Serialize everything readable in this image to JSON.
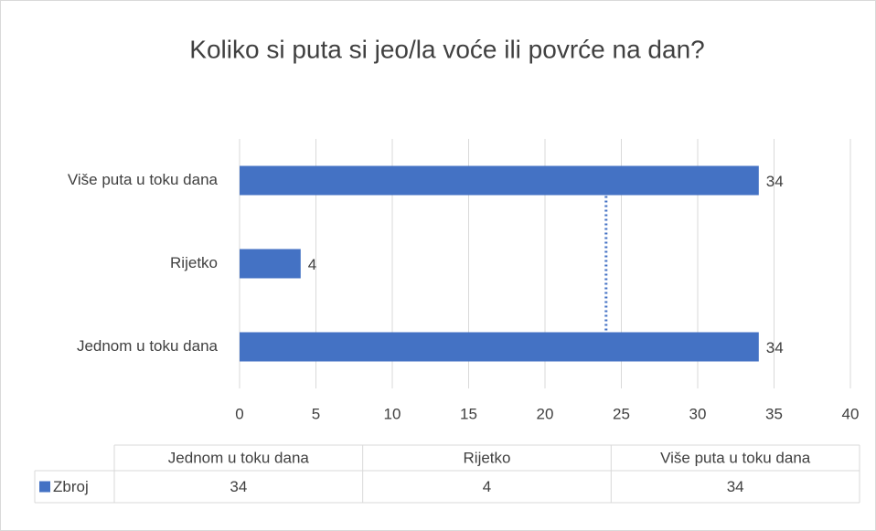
{
  "chart_data": {
    "type": "bar",
    "orientation": "horizontal",
    "title": "Koliko si puta si jeo/la voće ili povrće na dan?",
    "categories": [
      "Jednom u toku dana",
      "Rijetko",
      "Više puta u toku dana"
    ],
    "series": [
      {
        "name": "Zbroj",
        "color": "#4472c4",
        "values": [
          34,
          4,
          34
        ]
      }
    ],
    "mean_line": 24,
    "xlim": [
      0,
      40
    ],
    "xticks": [
      0,
      5,
      10,
      15,
      20,
      25,
      30,
      35,
      40
    ],
    "grid": true,
    "data_table": true
  }
}
